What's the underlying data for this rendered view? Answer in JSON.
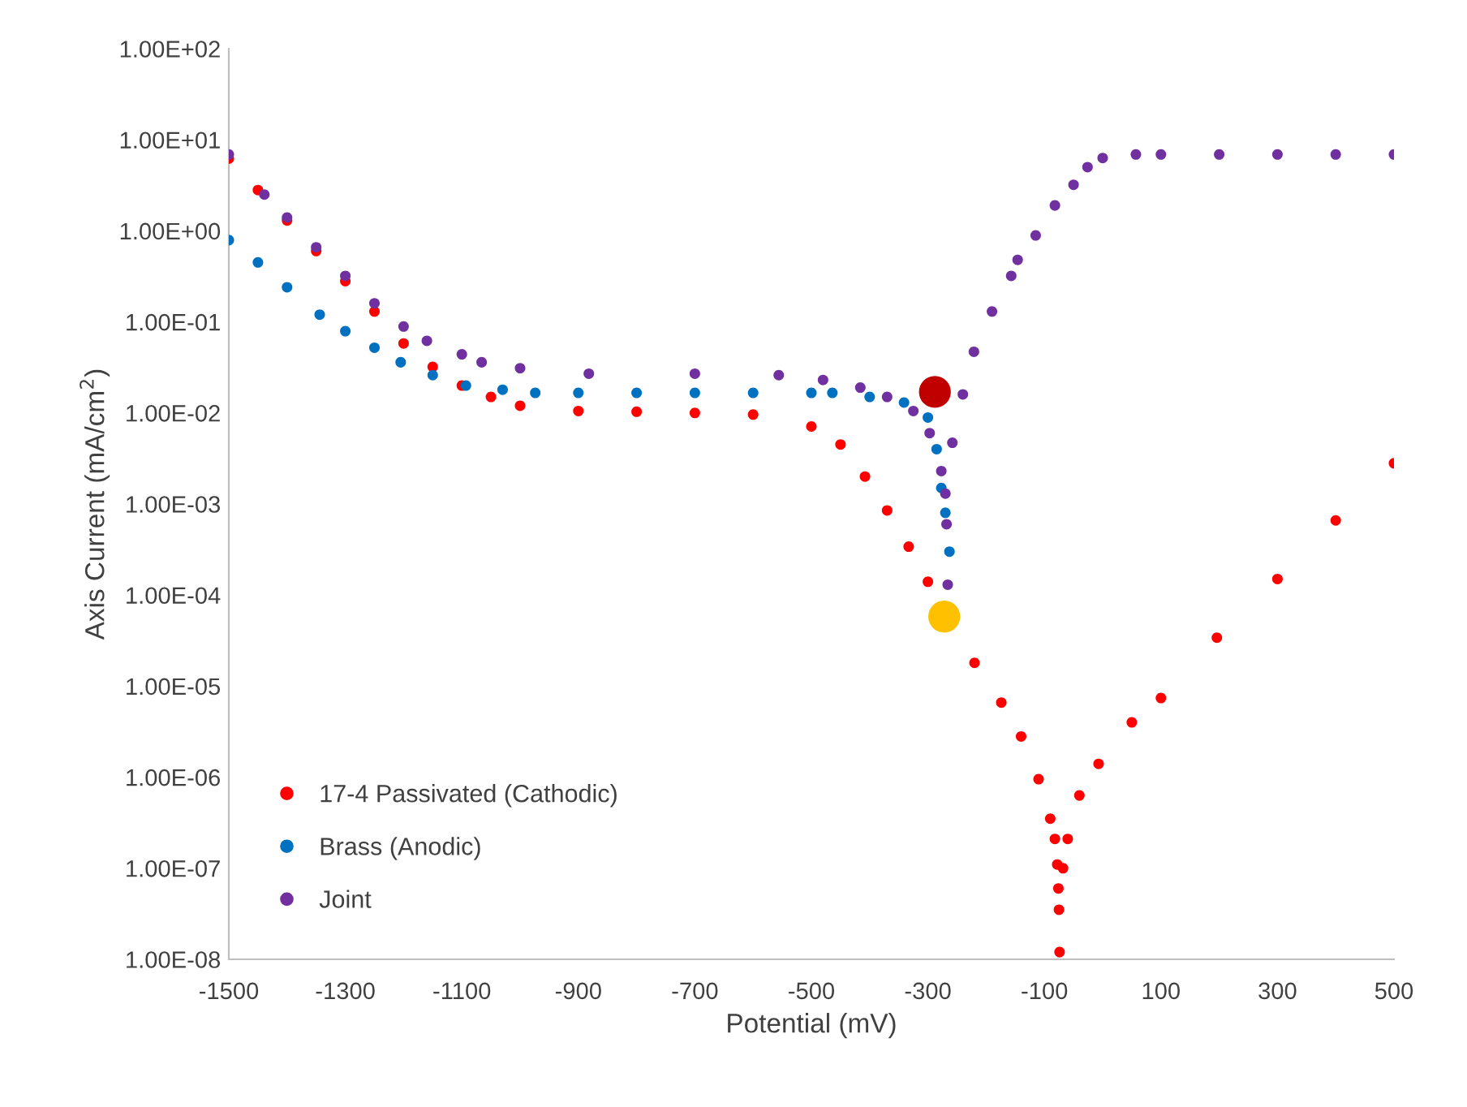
{
  "chart_data": {
    "type": "scatter",
    "xlabel": "Potential (mV)",
    "ylabel": "Axis Current (mA/cm$^{2}$)",
    "log": "y",
    "grid": false,
    "legend": "bottom left",
    "marker": "circle",
    "xlim": [
      -1500,
      500
    ],
    "xticks": [
      -1500,
      -1300,
      -1100,
      -900,
      -700,
      -500,
      -300,
      -100,
      100,
      300,
      500
    ],
    "ylim": [
      1e-08,
      100
    ],
    "yticks": [
      {
        "value": 1e-08,
        "label": "1.00E-08"
      },
      {
        "value": 1e-07,
        "label": "1.00E-07"
      },
      {
        "value": 1e-06,
        "label": "1.00E-06"
      },
      {
        "value": 1e-05,
        "label": "1.00E-05"
      },
      {
        "value": 0.0001,
        "label": "1.00E-04"
      },
      {
        "value": 0.001,
        "label": "1.00E-03"
      },
      {
        "value": 0.01,
        "label": "1.00E-02"
      },
      {
        "value": 0.1,
        "label": "1.00E-01"
      },
      {
        "value": 1,
        "label": "1.00E+00"
      },
      {
        "value": 10,
        "label": "1.00E+01"
      },
      {
        "value": 100,
        "label": "1.00E+02"
      }
    ],
    "series": [
      {
        "name": "17-4 Passivated (Cathodic)",
        "color": "#ff0000",
        "x": [
          -1500,
          -1450,
          -1400,
          -1350,
          -1300,
          -1250,
          -1200,
          -1150,
          -1100,
          -1050,
          -1000,
          -900,
          -800,
          -700,
          -600,
          -500,
          -450,
          -408,
          -370,
          -333,
          -300,
          -269,
          -220,
          -174,
          -140,
          -110,
          -90,
          -82,
          -78,
          -76,
          -75,
          -74,
          -68,
          -60,
          -40,
          -7,
          50,
          100,
          196,
          300,
          400,
          500
        ],
        "values": [
          6.2,
          2.8,
          1.3,
          0.6,
          0.28,
          0.13,
          0.058,
          0.032,
          0.02,
          0.015,
          0.012,
          0.0105,
          0.0103,
          0.01,
          0.0096,
          0.0071,
          0.0045,
          0.002,
          0.00085,
          0.00034,
          0.00014,
          null,
          1.8e-05,
          6.6e-06,
          2.8e-06,
          9.5e-07,
          3.5e-07,
          2.1e-07,
          1.1e-07,
          6e-08,
          3.5e-08,
          1.2e-08,
          1e-07,
          2.1e-07,
          6.3e-07,
          1.4e-06,
          4e-06,
          7.4e-06,
          3.4e-05,
          0.00015,
          0.00066,
          0.0028
        ]
      },
      {
        "name": "Brass (Anodic)",
        "color": "#0070c0",
        "x": [
          -1500,
          -1450,
          -1400,
          -1344,
          -1300,
          -1250,
          -1205,
          -1150,
          -1093,
          -1030,
          -974,
          -900,
          -800,
          -700,
          -600,
          -500,
          -464,
          -400,
          -341,
          -300,
          -285,
          -277,
          -270,
          -263
        ],
        "values": [
          0.79,
          0.45,
          0.24,
          0.12,
          0.079,
          0.052,
          0.036,
          0.026,
          0.02,
          0.018,
          0.0166,
          0.0166,
          0.0166,
          0.0166,
          0.0166,
          0.0166,
          0.0166,
          0.015,
          0.013,
          0.0089,
          0.004,
          0.0015,
          0.0008,
          0.0003
        ]
      },
      {
        "name": "Joint",
        "color": "#7030a0",
        "x": [
          -1500,
          -1439,
          -1400,
          -1350,
          -1300,
          -1250,
          -1200,
          -1160,
          -1100,
          -1066,
          -1000,
          -882,
          -700,
          -556,
          -480,
          -416,
          -370,
          -325,
          -297,
          -277,
          -270,
          -268,
          -266,
          -258,
          -240,
          -221,
          -190,
          -157,
          -146,
          -115,
          -82,
          -50,
          -26,
          0,
          57,
          100,
          200,
          300,
          400,
          500
        ],
        "values": [
          6.9,
          2.5,
          1.4,
          0.66,
          0.32,
          0.16,
          0.089,
          0.062,
          0.044,
          0.036,
          0.031,
          0.027,
          0.027,
          0.026,
          0.023,
          0.019,
          0.015,
          0.0105,
          0.006,
          0.0023,
          0.0013,
          0.0006,
          0.00013,
          0.0047,
          0.016,
          0.047,
          0.13,
          0.32,
          0.48,
          0.89,
          1.9,
          3.2,
          5.0,
          6.3,
          6.9,
          6.9,
          6.9,
          6.9,
          6.9,
          6.9
        ]
      },
      {
        "type": "bubble",
        "color": "#c00000",
        "x": [
          -288
        ],
        "values": [
          0.017
        ],
        "sizes": [
          1
        ]
      },
      {
        "type": "bubble",
        "color": "#ffc000",
        "x": [
          -272
        ],
        "values": [
          5.8e-05
        ],
        "sizes": [
          1
        ]
      }
    ]
  }
}
